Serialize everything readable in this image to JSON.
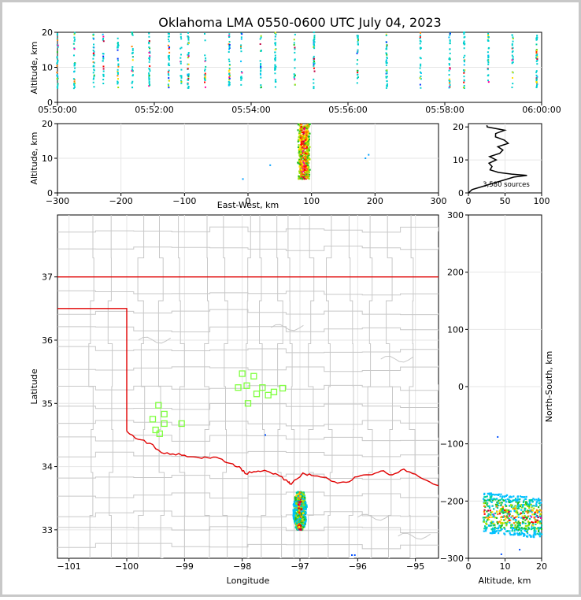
{
  "title": "Oklahoma LMA 0550-0600 UTC July 04, 2023",
  "colors": {
    "border": "#c8c8c8",
    "state_line": "#e00000",
    "county_line": "#c8c8c8",
    "station": "#7fff3f",
    "grid": "#e6e6e6"
  },
  "chart_data": [
    {
      "id": "time-height",
      "type": "scatter",
      "ylabel": "Altitude, km",
      "ylim": [
        0,
        20
      ],
      "yticks": [
        "0",
        "10",
        "20"
      ],
      "xlim_minutes": [
        0,
        10
      ],
      "xticks": [
        "05:50:00",
        "05:52:00",
        "05:54:00",
        "05:56:00",
        "05:58:00",
        "06:00:00"
      ],
      "flash_times_min": [
        0.0,
        0.35,
        0.75,
        0.95,
        1.25,
        1.55,
        1.9,
        2.3,
        2.55,
        2.7,
        3.05,
        3.55,
        3.8,
        4.2,
        4.5,
        4.9,
        5.3,
        6.2,
        6.8,
        7.5,
        8.1,
        8.4,
        8.9,
        9.4,
        9.9
      ],
      "altitude_range_km": [
        4,
        20
      ]
    },
    {
      "id": "east-west-altitude",
      "type": "heatmap",
      "xlabel": "East-West, km",
      "ylabel": "Altitude, km",
      "xlim": [
        -300,
        300
      ],
      "ylim": [
        0,
        20
      ],
      "xticks": [
        "−300",
        "−200",
        "−100",
        "0",
        "100",
        "200",
        "300"
      ],
      "yticks": [
        "0",
        "10",
        "20"
      ],
      "core": {
        "x_center_km": 88,
        "x_halfwidth_km": 10,
        "z_range_km": [
          4,
          20
        ]
      }
    },
    {
      "id": "altitude-histogram",
      "type": "line",
      "xlim": [
        0,
        100
      ],
      "ylim": [
        0,
        21
      ],
      "xticks": [
        "0",
        "50",
        "100"
      ],
      "yticks": [
        "0",
        "10",
        "20"
      ],
      "annotation": "3,580 sources",
      "profile": [
        [
          0,
          0
        ],
        [
          5,
          1
        ],
        [
          20,
          2
        ],
        [
          35,
          3
        ],
        [
          62,
          4.8
        ],
        [
          80,
          5.3
        ],
        [
          60,
          5.7
        ],
        [
          40,
          6.2
        ],
        [
          30,
          7
        ],
        [
          35,
          8
        ],
        [
          25,
          9
        ],
        [
          40,
          10
        ],
        [
          32,
          11
        ],
        [
          45,
          12
        ],
        [
          50,
          13
        ],
        [
          38,
          14
        ],
        [
          55,
          15
        ],
        [
          48,
          16
        ],
        [
          40,
          17
        ],
        [
          35,
          18
        ],
        [
          45,
          19
        ],
        [
          30,
          20
        ],
        [
          25,
          20.5
        ]
      ]
    },
    {
      "id": "plan-view",
      "type": "scatter",
      "xlabel": "Longitude",
      "ylabel": "Latitude",
      "xlim": [
        -101.2,
        -94.6
      ],
      "ylim": [
        32.55,
        37.98
      ],
      "xticks": [
        "−101",
        "−100",
        "−99",
        "−98",
        "−97",
        "−96",
        "−95"
      ],
      "yticks": [
        "33",
        "34",
        "35",
        "36",
        "37"
      ],
      "stations": [
        [
          -98.0,
          35.47
        ],
        [
          -97.8,
          35.43
        ],
        [
          -98.07,
          35.25
        ],
        [
          -97.92,
          35.28
        ],
        [
          -97.65,
          35.25
        ],
        [
          -97.45,
          35.18
        ],
        [
          -97.3,
          35.24
        ],
        [
          -97.55,
          35.13
        ],
        [
          -97.75,
          35.15
        ],
        [
          -97.9,
          35.0
        ],
        [
          -99.45,
          34.97
        ],
        [
          -99.35,
          34.83
        ],
        [
          -99.55,
          34.75
        ],
        [
          -99.35,
          34.68
        ],
        [
          -99.05,
          34.68
        ],
        [
          -99.5,
          34.58
        ],
        [
          -99.43,
          34.52
        ]
      ],
      "storm": {
        "lon_center": -97.0,
        "lat_range": [
          33.0,
          33.6
        ],
        "lon_halfwidth": 0.12
      }
    },
    {
      "id": "north-south-altitude",
      "type": "heatmap",
      "xlabel": "Altitude, km",
      "ylabel": "North-South, km",
      "xlim": [
        0,
        20
      ],
      "ylim": [
        -300,
        300
      ],
      "xticks": [
        "0",
        "10",
        "20"
      ],
      "yticks": [
        "−300",
        "−200",
        "−100",
        "0",
        "100",
        "200",
        "300"
      ],
      "core": {
        "ns_range_km": [
          -255,
          -185
        ],
        "alt_range_km": [
          4,
          20
        ]
      }
    }
  ]
}
